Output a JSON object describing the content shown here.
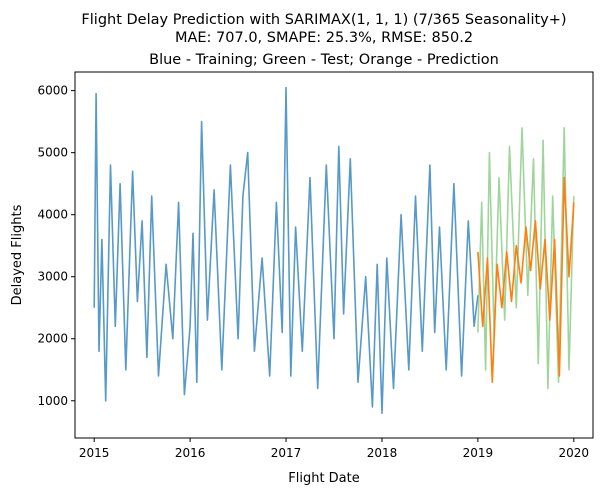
{
  "chart_data": {
    "type": "line",
    "title_line1": "Flight Delay Prediction with SARIMAX(1, 1, 1) (7/365 Seasonality+)",
    "title_line2": "MAE: 707.0, SMAPE: 25.3%, RMSE: 850.2",
    "subtitle": "Blue - Training; Green - Test; Orange - Prediction",
    "xlabel": "Flight Date",
    "ylabel": "Delayed Flights",
    "xlim": [
      2014.8,
      2020.2
    ],
    "ylim": [
      400,
      6300
    ],
    "xticks": [
      2015,
      2016,
      2017,
      2018,
      2019,
      2020
    ],
    "xtick_labels": [
      "2015",
      "2016",
      "2017",
      "2018",
      "2019",
      "2020"
    ],
    "yticks": [
      1000,
      2000,
      3000,
      4000,
      5000,
      6000
    ],
    "ytick_labels": [
      "1000",
      "2000",
      "3000",
      "4000",
      "5000",
      "6000"
    ],
    "grid": false,
    "series": [
      {
        "name": "Training",
        "color": "#5799c7",
        "x": [
          2015.0,
          2015.02,
          2015.05,
          2015.08,
          2015.12,
          2015.17,
          2015.22,
          2015.27,
          2015.33,
          2015.4,
          2015.45,
          2015.5,
          2015.55,
          2015.6,
          2015.67,
          2015.75,
          2015.82,
          2015.88,
          2015.94,
          2016.0,
          2016.03,
          2016.07,
          2016.12,
          2016.18,
          2016.25,
          2016.33,
          2016.42,
          2016.5,
          2016.55,
          2016.6,
          2016.67,
          2016.75,
          2016.83,
          2016.9,
          2016.96,
          2017.0,
          2017.05,
          2017.1,
          2017.17,
          2017.25,
          2017.33,
          2017.42,
          2017.5,
          2017.55,
          2017.6,
          2017.67,
          2017.75,
          2017.83,
          2017.9,
          2017.95,
          2018.0,
          2018.05,
          2018.12,
          2018.2,
          2018.28,
          2018.35,
          2018.42,
          2018.5,
          2018.55,
          2018.6,
          2018.67,
          2018.75,
          2018.83,
          2018.9,
          2018.96,
          2019.0
        ],
        "values": [
          2500,
          5950,
          1800,
          3600,
          1000,
          4800,
          2200,
          4500,
          1500,
          4700,
          2600,
          3900,
          1700,
          4300,
          1400,
          3200,
          2000,
          4200,
          1100,
          2200,
          3700,
          1300,
          5500,
          2300,
          4400,
          1500,
          4800,
          2000,
          4300,
          5000,
          1800,
          3300,
          1400,
          4200,
          2100,
          6050,
          1400,
          3800,
          1800,
          4600,
          1200,
          4800,
          2000,
          5100,
          2400,
          4900,
          1300,
          3000,
          900,
          3200,
          800,
          3300,
          1200,
          4000,
          1500,
          4300,
          1800,
          4800,
          2100,
          3800,
          1500,
          4500,
          1400,
          3900,
          2200,
          2700
        ]
      },
      {
        "name": "Test",
        "color": "#7fc77a",
        "x": [
          2019.0,
          2019.04,
          2019.08,
          2019.12,
          2019.17,
          2019.22,
          2019.28,
          2019.33,
          2019.4,
          2019.46,
          2019.52,
          2019.58,
          2019.63,
          2019.68,
          2019.73,
          2019.78,
          2019.84,
          2019.9,
          2019.95,
          2020.0
        ],
        "values": [
          2100,
          4200,
          1500,
          5000,
          2000,
          4600,
          2300,
          5100,
          2500,
          5400,
          2700,
          4900,
          1600,
          5200,
          1200,
          4300,
          1300,
          5400,
          1500,
          4300
        ]
      },
      {
        "name": "Prediction",
        "color": "#ff7f0e",
        "x": [
          2019.0,
          2019.05,
          2019.1,
          2019.15,
          2019.2,
          2019.25,
          2019.3,
          2019.35,
          2019.4,
          2019.45,
          2019.5,
          2019.55,
          2019.6,
          2019.65,
          2019.7,
          2019.75,
          2019.8,
          2019.85,
          2019.9,
          2019.95,
          2020.0
        ],
        "values": [
          3400,
          2200,
          3300,
          1300,
          3200,
          2500,
          3400,
          2600,
          3500,
          2900,
          3800,
          3100,
          3900,
          2800,
          3600,
          2300,
          3600,
          1400,
          4600,
          3000,
          4200
        ]
      }
    ]
  }
}
